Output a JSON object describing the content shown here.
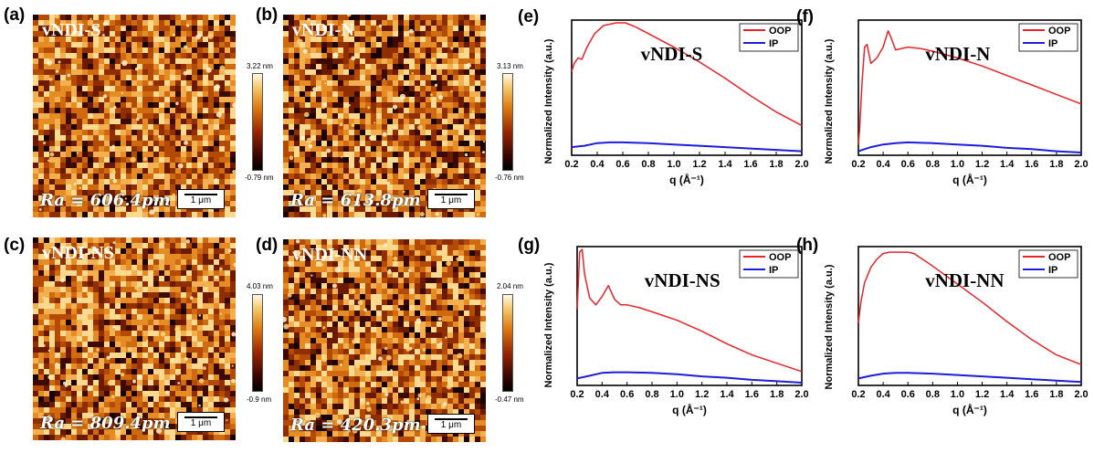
{
  "afm_panels": [
    {
      "label": "(a)",
      "title": "vNDI-S",
      "ra": "Ra = 606.4pm",
      "scale": "1 μm",
      "cmax": "3.22 nm",
      "cmin": "-0.79 nm",
      "density": 0.3
    },
    {
      "label": "(b)",
      "title": "vNDI-N",
      "ra": "Ra = 613.8pm",
      "scale": "1 μm",
      "cmax": "3.13 nm",
      "cmin": "-0.76 nm",
      "density": 0.25
    },
    {
      "label": "(c)",
      "title": "vNDI-NS",
      "ra": "Ra = 809.4pm",
      "scale": "1 μm",
      "cmax": "4.03 nm",
      "cmin": "-0.9 nm",
      "density": 0.34
    },
    {
      "label": "(d)",
      "title": "vNDI-NN",
      "ra": "Ra = 420.3pm",
      "scale": "1 μm",
      "cmax": "2.04 nm",
      "cmin": "-0.47 nm",
      "density": 0.27
    }
  ],
  "plots": [
    {
      "label": "(e)",
      "title": "vNDI-S"
    },
    {
      "label": "(f)",
      "title": "vNDI-N"
    },
    {
      "label": "(g)",
      "title": "vNDI-NS"
    },
    {
      "label": "(h)",
      "title": "vNDI-NN"
    }
  ],
  "axis": {
    "ylabel": "Normalized Intensity (a.u.)",
    "xlabel": "q (Å⁻¹)",
    "xticks": [
      "0.2",
      "0.4",
      "0.6",
      "0.8",
      "1.0",
      "1.2",
      "1.4",
      "1.6",
      "1.8",
      "2.0"
    ]
  },
  "legend": {
    "oop": "OOP",
    "ip": "IP"
  },
  "colors": {
    "oop": "#e8232a",
    "ip": "#1d1ddb"
  },
  "chart_data": [
    {
      "type": "line",
      "title": "vNDI-S",
      "xlabel": "q (Å⁻¹)",
      "ylabel": "Normalized Intensity (a.u.)",
      "xlim": [
        0.2,
        2.0
      ],
      "series": [
        {
          "name": "OOP",
          "x": [
            0.2,
            0.22,
            0.25,
            0.28,
            0.32,
            0.38,
            0.45,
            0.55,
            0.62,
            0.7,
            0.8,
            1.0,
            1.2,
            1.4,
            1.6,
            1.8,
            2.0
          ],
          "y": [
            0.62,
            0.68,
            0.72,
            0.71,
            0.8,
            0.9,
            0.96,
            0.98,
            0.98,
            0.95,
            0.9,
            0.8,
            0.69,
            0.57,
            0.44,
            0.32,
            0.22
          ]
        },
        {
          "name": "IP",
          "x": [
            0.2,
            0.3,
            0.4,
            0.5,
            0.6,
            0.8,
            1.0,
            1.2,
            1.4,
            1.6,
            1.8,
            2.0
          ],
          "y": [
            0.06,
            0.07,
            0.09,
            0.095,
            0.095,
            0.09,
            0.08,
            0.07,
            0.06,
            0.05,
            0.04,
            0.03
          ]
        }
      ]
    },
    {
      "type": "line",
      "title": "vNDI-N",
      "xlabel": "q (Å⁻¹)",
      "ylabel": "Normalized Intensity (a.u.)",
      "xlim": [
        0.2,
        2.0
      ],
      "series": [
        {
          "name": "OOP",
          "x": [
            0.2,
            0.21,
            0.23,
            0.25,
            0.27,
            0.3,
            0.35,
            0.4,
            0.44,
            0.46,
            0.5,
            0.55,
            0.6,
            0.7,
            0.8,
            1.0,
            1.2,
            1.4,
            1.6,
            1.8,
            2.0
          ],
          "y": [
            0.08,
            0.2,
            0.55,
            0.8,
            0.82,
            0.68,
            0.72,
            0.8,
            0.92,
            0.88,
            0.78,
            0.79,
            0.8,
            0.79,
            0.77,
            0.72,
            0.66,
            0.59,
            0.52,
            0.45,
            0.38
          ]
        },
        {
          "name": "IP",
          "x": [
            0.2,
            0.3,
            0.4,
            0.5,
            0.6,
            0.8,
            1.0,
            1.2,
            1.4,
            1.6,
            1.8,
            2.0
          ],
          "y": [
            0.03,
            0.06,
            0.08,
            0.09,
            0.095,
            0.09,
            0.08,
            0.07,
            0.055,
            0.045,
            0.03,
            0.02
          ]
        }
      ]
    },
    {
      "type": "line",
      "title": "vNDI-NS",
      "xlabel": "q (Å⁻¹)",
      "ylabel": "Normalized Intensity (a.u.)",
      "xlim": [
        0.2,
        2.0
      ],
      "series": [
        {
          "name": "OOP",
          "x": [
            0.2,
            0.21,
            0.22,
            0.24,
            0.26,
            0.3,
            0.35,
            0.4,
            0.45,
            0.5,
            0.55,
            0.6,
            0.7,
            0.8,
            1.0,
            1.2,
            1.4,
            1.6,
            1.8,
            2.0
          ],
          "y": [
            0.55,
            0.75,
            0.96,
            0.98,
            0.8,
            0.63,
            0.58,
            0.64,
            0.72,
            0.62,
            0.58,
            0.58,
            0.56,
            0.53,
            0.47,
            0.39,
            0.3,
            0.22,
            0.16,
            0.1
          ]
        },
        {
          "name": "IP",
          "x": [
            0.2,
            0.3,
            0.4,
            0.5,
            0.6,
            0.8,
            1.0,
            1.2,
            1.4,
            1.6,
            1.8,
            2.0
          ],
          "y": [
            0.05,
            0.07,
            0.09,
            0.095,
            0.095,
            0.09,
            0.08,
            0.065,
            0.055,
            0.04,
            0.03,
            0.02
          ]
        }
      ]
    },
    {
      "type": "line",
      "title": "vNDI-NN",
      "xlabel": "q (Å⁻¹)",
      "ylabel": "Normalized Intensity (a.u.)",
      "xlim": [
        0.2,
        2.0
      ],
      "series": [
        {
          "name": "OOP",
          "x": [
            0.2,
            0.22,
            0.25,
            0.3,
            0.35,
            0.4,
            0.45,
            0.5,
            0.6,
            0.65,
            0.7,
            0.8,
            1.0,
            1.2,
            1.4,
            1.6,
            1.8,
            2.0
          ],
          "y": [
            0.45,
            0.6,
            0.74,
            0.85,
            0.91,
            0.95,
            0.96,
            0.96,
            0.96,
            0.95,
            0.92,
            0.86,
            0.73,
            0.6,
            0.46,
            0.33,
            0.22,
            0.15
          ]
        },
        {
          "name": "IP",
          "x": [
            0.2,
            0.3,
            0.4,
            0.5,
            0.6,
            0.8,
            1.0,
            1.2,
            1.4,
            1.6,
            1.8,
            2.0
          ],
          "y": [
            0.05,
            0.07,
            0.085,
            0.09,
            0.09,
            0.085,
            0.075,
            0.065,
            0.055,
            0.045,
            0.035,
            0.025
          ]
        }
      ]
    }
  ]
}
